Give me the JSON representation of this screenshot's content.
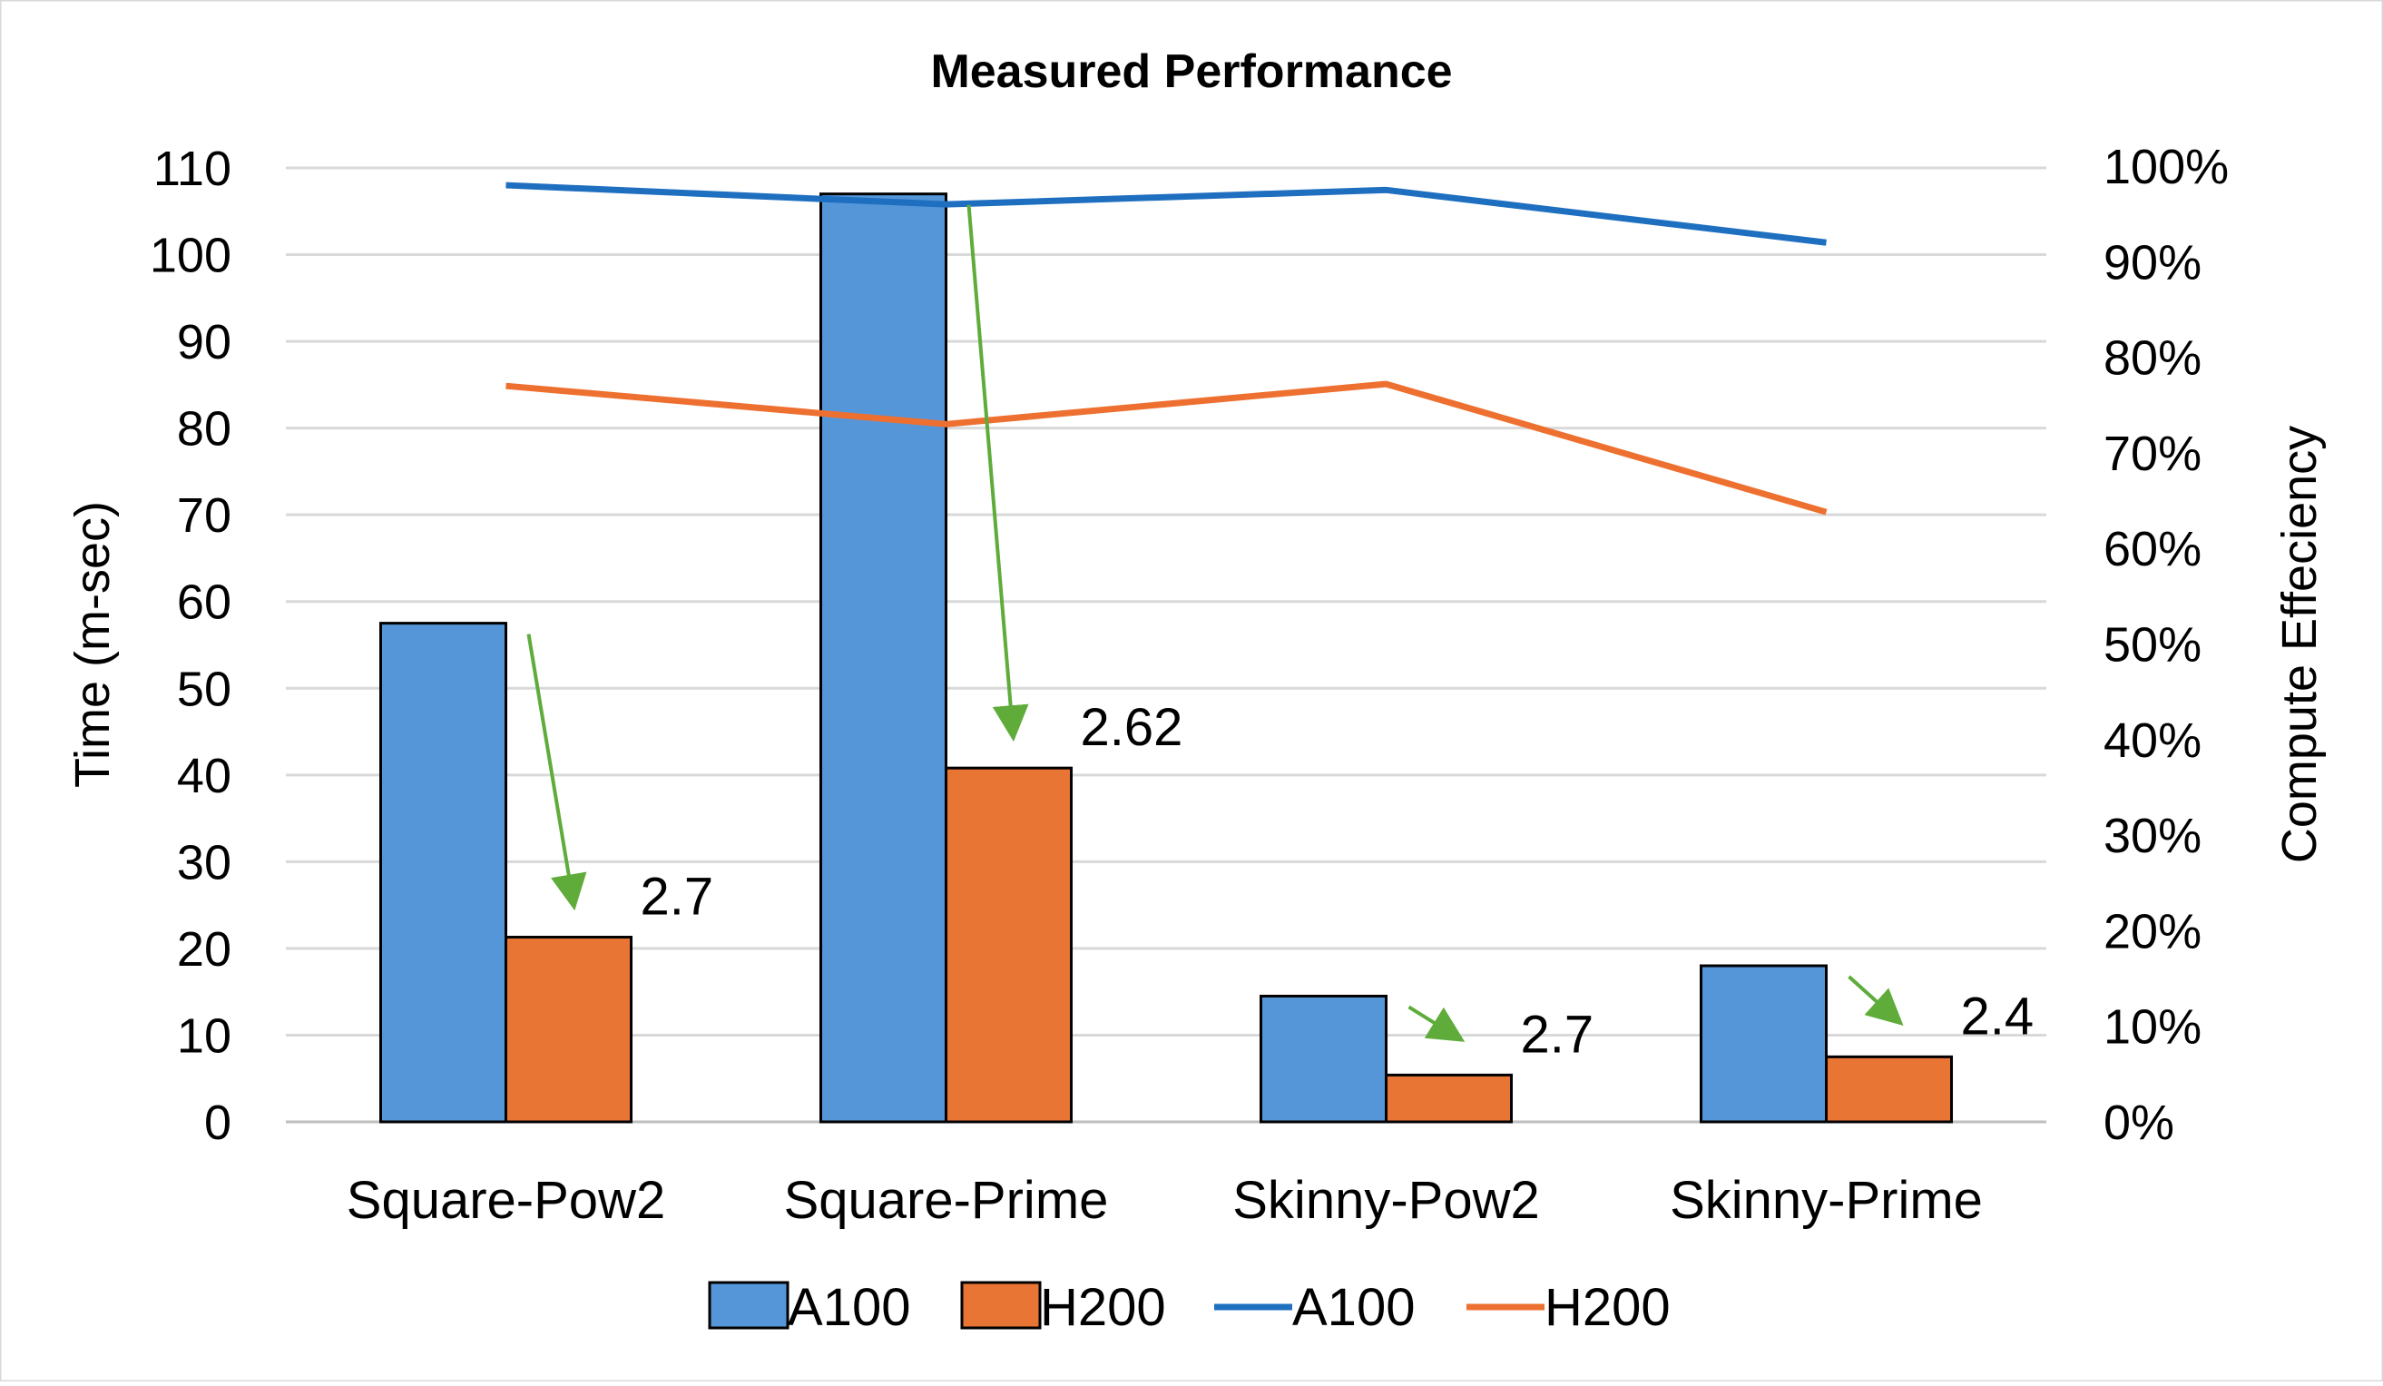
{
  "chart_data": {
    "type": "bar",
    "title": "Measured Performance",
    "categories": [
      "Square-Pow2",
      "Square-Prime",
      "Skinny-Pow2",
      "Skinny-Prime"
    ],
    "bar_series": [
      {
        "name": "A100",
        "values": [
          57.5,
          107,
          14.5,
          18
        ],
        "color": "#5596d9"
      },
      {
        "name": "H200",
        "values": [
          21.3,
          40.8,
          5.4,
          7.5
        ],
        "color": "#e97535"
      }
    ],
    "line_series": [
      {
        "name": "A100",
        "values": [
          0.98,
          0.96,
          0.975,
          0.92
        ],
        "color": "#1f6fc0",
        "axis": "right"
      },
      {
        "name": "H200",
        "values": [
          0.77,
          0.73,
          0.772,
          0.638
        ],
        "color": "#ee7030",
        "axis": "right"
      }
    ],
    "ylabel": "Time (m-sec)",
    "y2label": "Compute Effeciency",
    "ylim": [
      0,
      110
    ],
    "y_ticks": [
      "0",
      "10",
      "20",
      "30",
      "40",
      "50",
      "60",
      "70",
      "80",
      "90",
      "100",
      "110"
    ],
    "y2lim": [
      0,
      1
    ],
    "y2_ticks": [
      "0%",
      "10%",
      "20%",
      "30%",
      "40%",
      "50%",
      "60%",
      "70%",
      "80%",
      "90%",
      "100%"
    ],
    "grid": true,
    "legend_placement": "bottom",
    "annotations": [
      {
        "text": "2.7",
        "category": "Square-Pow2",
        "from_value": 57.5,
        "to_value": 21.3
      },
      {
        "text": "2.62",
        "category": "Square-Prime",
        "from_value": 107,
        "to_value": 40.8
      },
      {
        "text": "2.7",
        "category": "Skinny-Pow2",
        "from_value": 14.5,
        "to_value": 5.4
      },
      {
        "text": "2.4",
        "category": "Skinny-Prime",
        "from_value": 18,
        "to_value": 7.5
      }
    ],
    "annotation_arrow_color": "#5fac3b"
  }
}
